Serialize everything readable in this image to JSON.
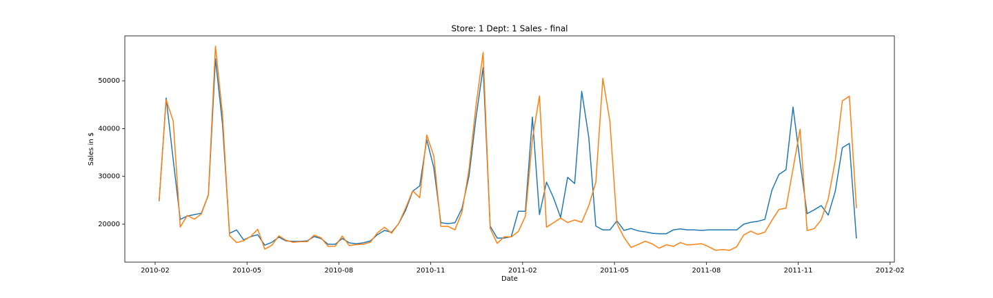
{
  "chart_data": {
    "type": "line",
    "title": "Store: 1 Dept: 1 Sales - final",
    "xlabel": "Date",
    "ylabel": "Sales in $",
    "x": [
      0.13,
      0.36,
      0.59,
      0.82,
      1.05,
      1.28,
      1.51,
      1.74,
      1.97,
      2.2,
      2.43,
      2.66,
      2.89,
      3.12,
      3.35,
      3.58,
      3.81,
      4.04,
      4.27,
      4.5,
      4.73,
      4.96,
      5.19,
      5.42,
      5.65,
      5.88,
      6.11,
      6.34,
      6.57,
      6.8,
      7.03,
      7.26,
      7.49,
      7.72,
      7.95,
      8.18,
      8.41,
      8.64,
      8.87,
      9.1,
      9.33,
      9.56,
      9.79,
      10.02,
      10.25,
      10.48,
      10.71,
      10.94,
      11.17,
      11.4,
      11.63,
      11.86,
      12.09,
      12.32,
      12.55,
      12.78,
      13.01,
      13.24,
      13.47,
      13.7,
      13.93,
      14.16,
      14.39,
      14.62,
      14.85,
      15.08,
      15.31,
      15.54,
      15.77,
      16.0,
      16.23,
      16.46,
      16.69,
      16.92,
      17.15,
      17.38,
      17.61,
      17.84,
      18.07,
      18.3,
      18.53,
      18.76,
      18.99,
      19.22,
      19.45,
      19.68,
      19.91,
      20.14,
      20.37,
      20.6,
      20.83,
      21.06,
      21.29,
      21.52,
      21.75,
      21.98,
      22.21,
      22.44,
      22.67,
      22.9
    ],
    "series": [
      {
        "color": "#1f77b4",
        "values": [
          24800,
          46400,
          33500,
          21000,
          21700,
          22000,
          22300,
          26100,
          54600,
          40900,
          18100,
          18800,
          16700,
          17400,
          17800,
          15600,
          16200,
          17300,
          16500,
          16400,
          16400,
          16500,
          17400,
          17000,
          15800,
          15800,
          17000,
          16100,
          15900,
          16100,
          16500,
          17800,
          18700,
          18300,
          20100,
          22900,
          26900,
          28000,
          37700,
          31800,
          20300,
          20100,
          20300,
          23300,
          30100,
          42400,
          52800,
          19600,
          17100,
          17100,
          17400,
          22700,
          22700,
          42400,
          22000,
          28800,
          25500,
          21400,
          29800,
          28500,
          47800,
          38200,
          19600,
          18800,
          18800,
          20700,
          18700,
          19100,
          18600,
          18400,
          18100,
          18000,
          18000,
          18800,
          19000,
          18800,
          18800,
          18700,
          18800,
          18800,
          18800,
          18800,
          18800,
          20000,
          20400,
          20600,
          21000,
          27100,
          30400,
          31400,
          44500,
          33000,
          22200,
          23000,
          23900,
          21900,
          26900,
          36000,
          36900,
          17000
        ]
      },
      {
        "color": "#ff7f0e",
        "values": [
          24925,
          46039,
          41596,
          19404,
          21828,
          21043,
          22137,
          26229,
          57258,
          42961,
          17597,
          16145,
          16555,
          17414,
          18927,
          14773,
          15580,
          17558,
          16638,
          16216,
          16329,
          16333,
          17689,
          17151,
          15360,
          15382,
          17508,
          15536,
          15740,
          15794,
          16242,
          18195,
          19354,
          18123,
          20094,
          23388,
          26978,
          25543,
          38641,
          34239,
          19549,
          19553,
          18820,
          22518,
          31498,
          44913,
          55931,
          19125,
          15984,
          17360,
          17341,
          18461,
          21666,
          37887,
          46846,
          19364,
          20328,
          21280,
          20334,
          20881,
          20398,
          23874,
          28762,
          50510,
          41512,
          20138,
          17235,
          15137,
          15742,
          16434,
          15884,
          14978,
          15683,
          15364,
          16149,
          15655,
          15767,
          15922,
          15296,
          14540,
          14689,
          14537,
          15277,
          17747,
          18535,
          17859,
          18338,
          20798,
          23078,
          23352,
          31580,
          39886,
          18690,
          19051,
          20911,
          25293,
          33306,
          45773,
          46789,
          23351
        ]
      }
    ],
    "xlim": [
      -0.99,
      24.14
    ],
    "xticks": [
      {
        "value": 0,
        "label": "2010-02"
      },
      {
        "value": 3,
        "label": "2010-05"
      },
      {
        "value": 6,
        "label": "2010-08"
      },
      {
        "value": 9,
        "label": "2010-11"
      },
      {
        "value": 12,
        "label": "2011-02"
      },
      {
        "value": 15,
        "label": "2011-05"
      },
      {
        "value": 18,
        "label": "2011-08"
      },
      {
        "value": 21,
        "label": "2011-11"
      },
      {
        "value": 24,
        "label": "2012-02"
      }
    ],
    "ylim": [
      12060,
      59400
    ],
    "yticks": [
      20000,
      30000,
      40000,
      50000
    ],
    "grid": false
  }
}
